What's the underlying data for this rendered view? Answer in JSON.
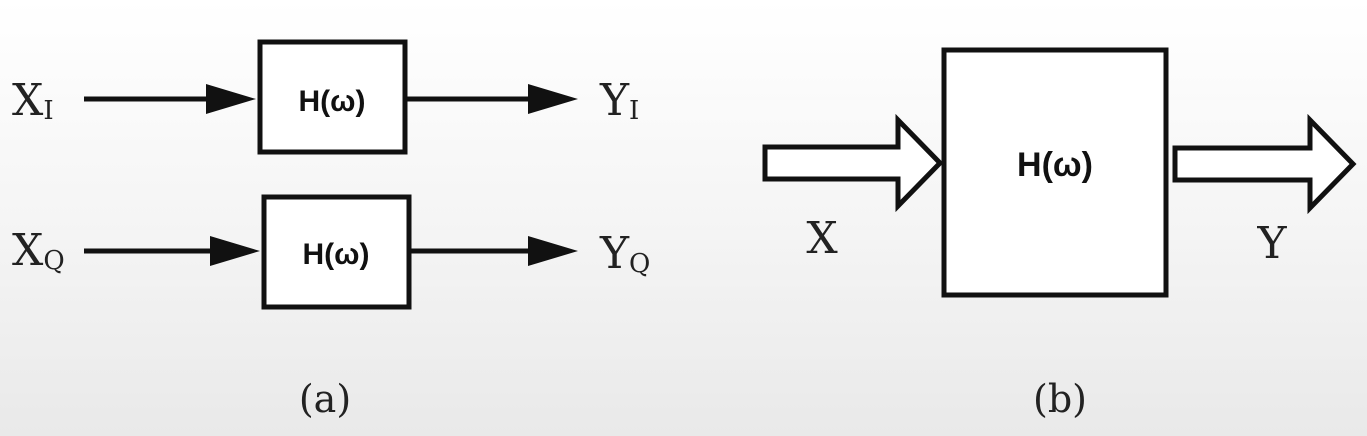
{
  "diagram_a": {
    "caption": "(a)",
    "rows": [
      {
        "input_main": "X",
        "input_sub": "I",
        "block": "H(ω)",
        "output_main": "Y",
        "output_sub": "I"
      },
      {
        "input_main": "X",
        "input_sub": "Q",
        "block": "H(ω)",
        "output_main": "Y",
        "output_sub": "Q"
      }
    ]
  },
  "diagram_b": {
    "caption": "(b)",
    "input": "X",
    "block": "H(ω)",
    "output": "Y"
  }
}
